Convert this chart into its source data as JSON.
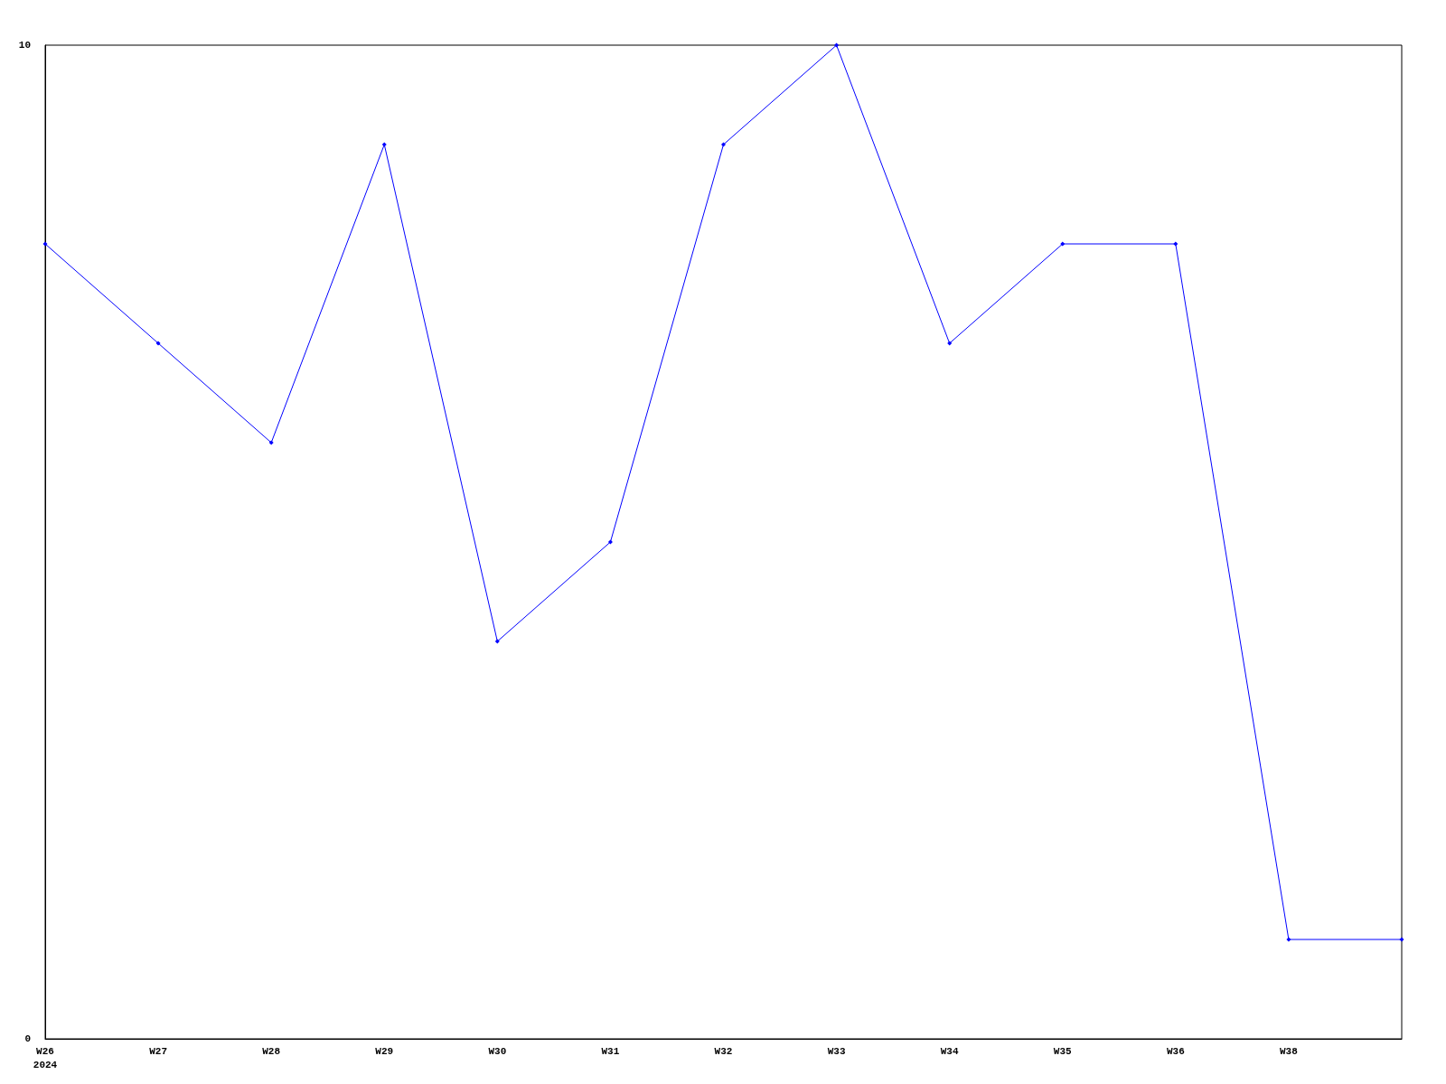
{
  "chart_data": {
    "type": "line",
    "categories": [
      "W26\n2024",
      "W27",
      "W28",
      "W29",
      "W30",
      "W31",
      "W32",
      "W33",
      "W34",
      "W35",
      "W36",
      "W38",
      null
    ],
    "series": [
      {
        "color": "#0000ff",
        "values": [
          8,
          7,
          6,
          9,
          4,
          5,
          9,
          10,
          7,
          8,
          8,
          1,
          1
        ]
      }
    ],
    "ylim": [
      0,
      10
    ],
    "yticks": [
      0,
      10
    ],
    "grid": false,
    "marker": "diamond",
    "line_style": "solid"
  }
}
